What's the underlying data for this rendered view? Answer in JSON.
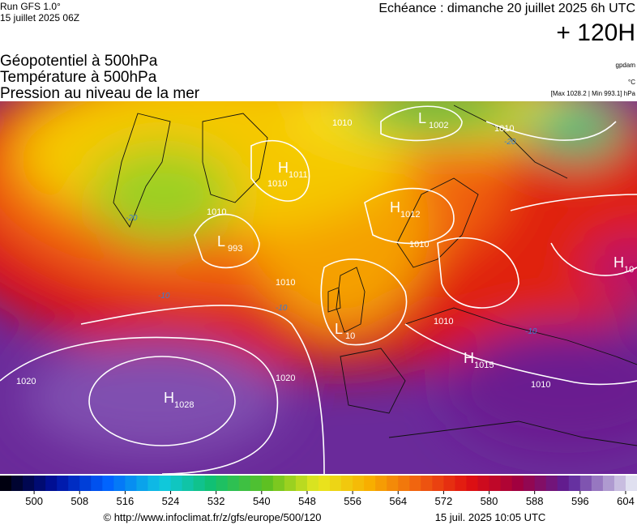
{
  "header": {
    "run": "Run GFS 1.0°",
    "run_date": "15 juillet 2025 06Z",
    "valid": "Echéance : dimanche 20 juillet 2025 6h UTC",
    "lead": "+ 120H",
    "fields": [
      "Géopotentiel à 500hPa",
      "Température à 500hPa",
      "Pression au niveau de la mer"
    ],
    "units": [
      "gpdam",
      "°C",
      "[Max 1028.2 | Min 993.1] hPa"
    ]
  },
  "map": {
    "centers": [
      {
        "letter": "L",
        "value": "1002"
      },
      {
        "letter": "H",
        "value": "1011"
      },
      {
        "letter": "L",
        "value": "993"
      },
      {
        "letter": "H",
        "value": "1012"
      },
      {
        "letter": "H",
        "value": "1015"
      },
      {
        "letter": "H",
        "value": "1028"
      },
      {
        "letter": "H",
        "value": "10"
      },
      {
        "letter": "L",
        "value": "10"
      }
    ],
    "isobar_labels": [
      "1010",
      "1010",
      "1010",
      "1020",
      "1020",
      "1010",
      "1010",
      "1010",
      "1010",
      "1010"
    ],
    "temp_labels": [
      "-20",
      "-20",
      "-10",
      "-10",
      "-10"
    ]
  },
  "colorbar": {
    "range": [
      494,
      606
    ],
    "ticks": [
      500,
      508,
      516,
      524,
      532,
      540,
      548,
      556,
      564,
      572,
      580,
      588,
      596,
      604
    ]
  },
  "footer": {
    "source": "© http://www.infoclimat.fr/z/gfs/europe/500/120",
    "date": "15 juil. 2025 10:05 UTC"
  }
}
